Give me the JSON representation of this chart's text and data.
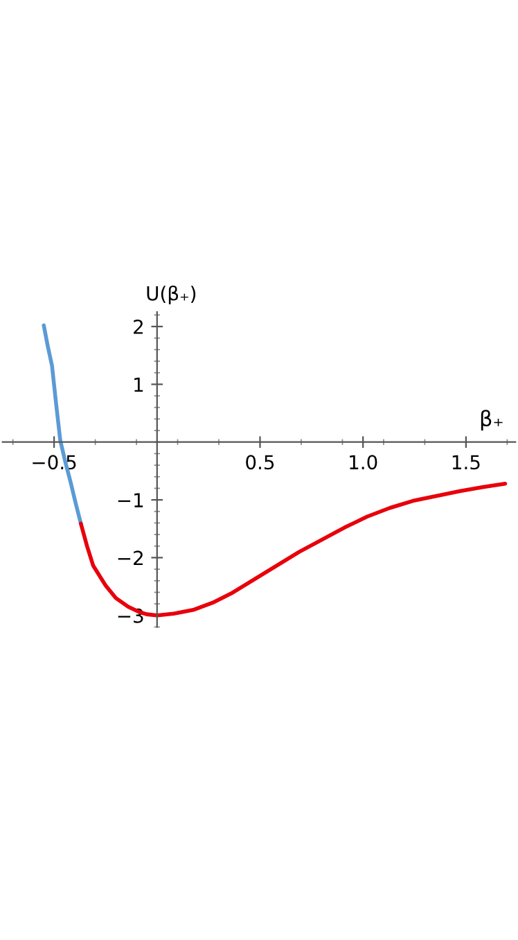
{
  "chart_data": {
    "type": "line",
    "xlabel": "β₊",
    "ylabel": "U(β₊)",
    "xlim": [
      -0.75,
      1.74
    ],
    "ylim": [
      -3.2,
      2.25
    ],
    "xticks": [
      -0.5,
      0.5,
      {
        "value": 1,
        "label": "1.0"
      },
      1.5
    ],
    "yticks": [
      -3,
      -2,
      -1,
      1,
      2
    ],
    "grid": false,
    "marker": "none",
    "line_style": "solid",
    "series": [
      {
        "color": "#5b9bd5",
        "x": [
          -0.55,
          -0.53,
          -0.51,
          -0.49,
          -0.47,
          -0.445,
          -0.42,
          -0.395,
          -0.37
        ],
        "values": [
          2.02,
          1.65,
          1.32,
          0.66,
          0.03,
          -0.35,
          -0.69,
          -1.06,
          -1.41
        ]
      },
      {
        "color": "#e8000b",
        "x": [
          -0.37,
          -0.34,
          -0.31,
          -0.25,
          -0.2,
          -0.14,
          -0.087,
          -0.05,
          0.0,
          0.08,
          0.18,
          0.27,
          0.36,
          0.47,
          0.58,
          0.69,
          0.8,
          0.91,
          1.02,
          1.13,
          1.25,
          1.36,
          1.47,
          1.58,
          1.69
        ],
        "values": [
          -1.41,
          -1.8,
          -2.14,
          -2.48,
          -2.7,
          -2.85,
          -2.94,
          -2.98,
          -3.0,
          -2.97,
          -2.9,
          -2.78,
          -2.62,
          -2.38,
          -2.14,
          -1.9,
          -1.69,
          -1.48,
          -1.29,
          -1.14,
          -1.01,
          -0.93,
          -0.85,
          -0.78,
          -0.72
        ]
      }
    ]
  }
}
